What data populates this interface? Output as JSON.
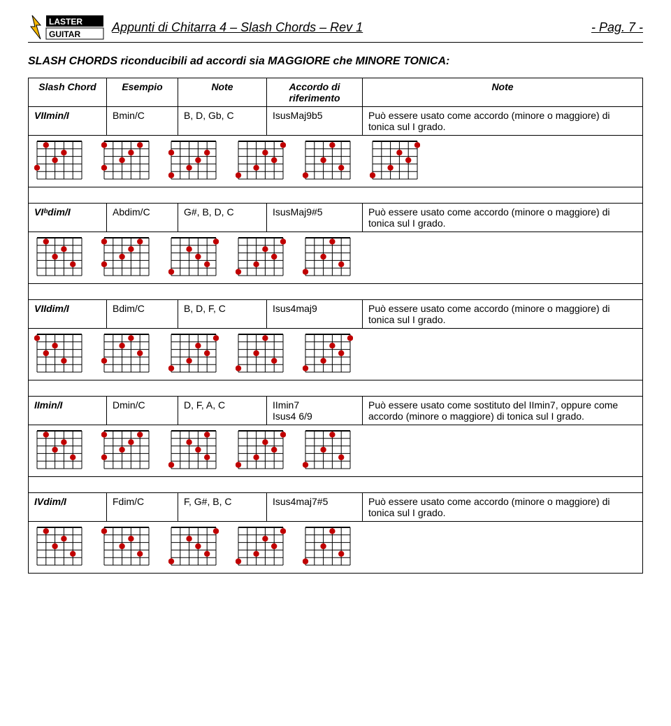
{
  "header": {
    "title": "Appunti di Chitarra 4 – Slash Chords – Rev 1",
    "page": "- Pag. 7 -",
    "logo_text_top": "LASTER",
    "logo_text_bottom": "GUITAR"
  },
  "section_title": "SLASH CHORDS riconducibili ad accordi sia MAGGIORE che MINORE TONICA:",
  "columns": {
    "c1": "Slash Chord",
    "c2": "Esempio",
    "c3": "Note",
    "c4": "Accordo di riferimento",
    "c5": "Note"
  },
  "rows": [
    {
      "slash": "VIImin/I",
      "esempio": "Bmin/C",
      "note1": "B, D, Gb, C",
      "accordo": "IsusMaj9b5",
      "note2": "Può essere usato come accordo (minore o maggiore) di tonica sul I grado.",
      "diagrams": [
        [
          [
            0,
            1
          ],
          [
            1,
            3
          ],
          [
            2,
            2
          ],
          [
            3,
            0
          ]
        ],
        [
          [
            0,
            0
          ],
          [
            0,
            4
          ],
          [
            1,
            3
          ],
          [
            2,
            2
          ],
          [
            3,
            0
          ]
        ],
        [
          [
            1,
            0
          ],
          [
            1,
            4
          ],
          [
            2,
            3
          ],
          [
            3,
            2
          ],
          [
            4,
            0
          ]
        ],
        [
          [
            0,
            5
          ],
          [
            1,
            3
          ],
          [
            2,
            4
          ],
          [
            3,
            2
          ],
          [
            4,
            0
          ]
        ],
        [
          [
            0,
            3
          ],
          [
            2,
            2
          ],
          [
            3,
            4
          ],
          [
            4,
            0
          ]
        ],
        [
          [
            0,
            5
          ],
          [
            1,
            3
          ],
          [
            2,
            4
          ],
          [
            3,
            2
          ],
          [
            4,
            0
          ]
        ]
      ]
    },
    {
      "slash": "VIᵇdim/I",
      "esempio": "Abdim/C",
      "note1": "G#, B, D, C",
      "accordo": "IsusMaj9#5",
      "note2": "Può essere usato come accordo (minore o maggiore) di tonica sul I grado.",
      "diagrams": [
        [
          [
            0,
            1
          ],
          [
            1,
            3
          ],
          [
            2,
            2
          ],
          [
            3,
            4
          ]
        ],
        [
          [
            0,
            0
          ],
          [
            0,
            4
          ],
          [
            1,
            3
          ],
          [
            2,
            2
          ],
          [
            3,
            0
          ]
        ],
        [
          [
            0,
            5
          ],
          [
            1,
            2
          ],
          [
            2,
            3
          ],
          [
            3,
            4
          ],
          [
            4,
            0
          ]
        ],
        [
          [
            0,
            5
          ],
          [
            1,
            3
          ],
          [
            2,
            4
          ],
          [
            3,
            2
          ],
          [
            4,
            0
          ]
        ],
        [
          [
            0,
            3
          ],
          [
            2,
            2
          ],
          [
            3,
            4
          ],
          [
            4,
            0
          ]
        ]
      ]
    },
    {
      "slash": "VIIdim/I",
      "esempio": "Bdim/C",
      "note1": "B, D, F, C",
      "accordo": "Isus4maj9",
      "note2": "Può essere usato come accordo (minore o maggiore) di tonica sul I grado.",
      "diagrams": [
        [
          [
            0,
            0
          ],
          [
            1,
            2
          ],
          [
            2,
            1
          ],
          [
            3,
            3
          ]
        ],
        [
          [
            0,
            3
          ],
          [
            1,
            2
          ],
          [
            2,
            4
          ],
          [
            3,
            0
          ]
        ],
        [
          [
            0,
            5
          ],
          [
            1,
            3
          ],
          [
            2,
            4
          ],
          [
            3,
            2
          ],
          [
            4,
            0
          ]
        ],
        [
          [
            0,
            3
          ],
          [
            2,
            2
          ],
          [
            3,
            4
          ],
          [
            4,
            0
          ]
        ],
        [
          [
            0,
            5
          ],
          [
            1,
            3
          ],
          [
            2,
            4
          ],
          [
            3,
            2
          ],
          [
            4,
            0
          ]
        ]
      ]
    },
    {
      "slash": "IImin/I",
      "esempio": "Dmin/C",
      "note1": "D, F, A, C",
      "accordo": "IImin7\nIsus4 6/9",
      "note2": "Può essere usato come sostituto del IImin7, oppure come accordo (minore o maggiore) di tonica sul I grado.",
      "diagrams": [
        [
          [
            0,
            1
          ],
          [
            1,
            3
          ],
          [
            2,
            2
          ],
          [
            3,
            4
          ]
        ],
        [
          [
            0,
            0
          ],
          [
            0,
            4
          ],
          [
            1,
            3
          ],
          [
            2,
            2
          ],
          [
            3,
            0
          ]
        ],
        [
          [
            0,
            4
          ],
          [
            1,
            2
          ],
          [
            2,
            3
          ],
          [
            3,
            4
          ],
          [
            4,
            0
          ]
        ],
        [
          [
            0,
            5
          ],
          [
            1,
            3
          ],
          [
            2,
            4
          ],
          [
            3,
            2
          ],
          [
            4,
            0
          ]
        ],
        [
          [
            0,
            3
          ],
          [
            2,
            2
          ],
          [
            3,
            4
          ],
          [
            4,
            0
          ]
        ]
      ]
    },
    {
      "slash": "IVdim/I",
      "esempio": "Fdim/C",
      "note1": "F, G#, B, C",
      "accordo": "Isus4maj7#5",
      "note2": "Può essere usato come accordo (minore o maggiore) di tonica sul I grado.",
      "diagrams": [
        [
          [
            0,
            1
          ],
          [
            1,
            3
          ],
          [
            2,
            2
          ],
          [
            3,
            4
          ]
        ],
        [
          [
            0,
            0
          ],
          [
            1,
            3
          ],
          [
            2,
            2
          ],
          [
            3,
            4
          ]
        ],
        [
          [
            0,
            5
          ],
          [
            1,
            2
          ],
          [
            2,
            3
          ],
          [
            3,
            4
          ],
          [
            4,
            0
          ]
        ],
        [
          [
            0,
            5
          ],
          [
            1,
            3
          ],
          [
            2,
            4
          ],
          [
            3,
            2
          ],
          [
            4,
            0
          ]
        ],
        [
          [
            0,
            3
          ],
          [
            2,
            2
          ],
          [
            3,
            4
          ],
          [
            4,
            0
          ]
        ]
      ]
    }
  ],
  "diagram_style": {
    "strings": 6,
    "frets": 5,
    "dot_color": "#c00000",
    "line_color": "#000000",
    "bg": "#ffffff"
  }
}
